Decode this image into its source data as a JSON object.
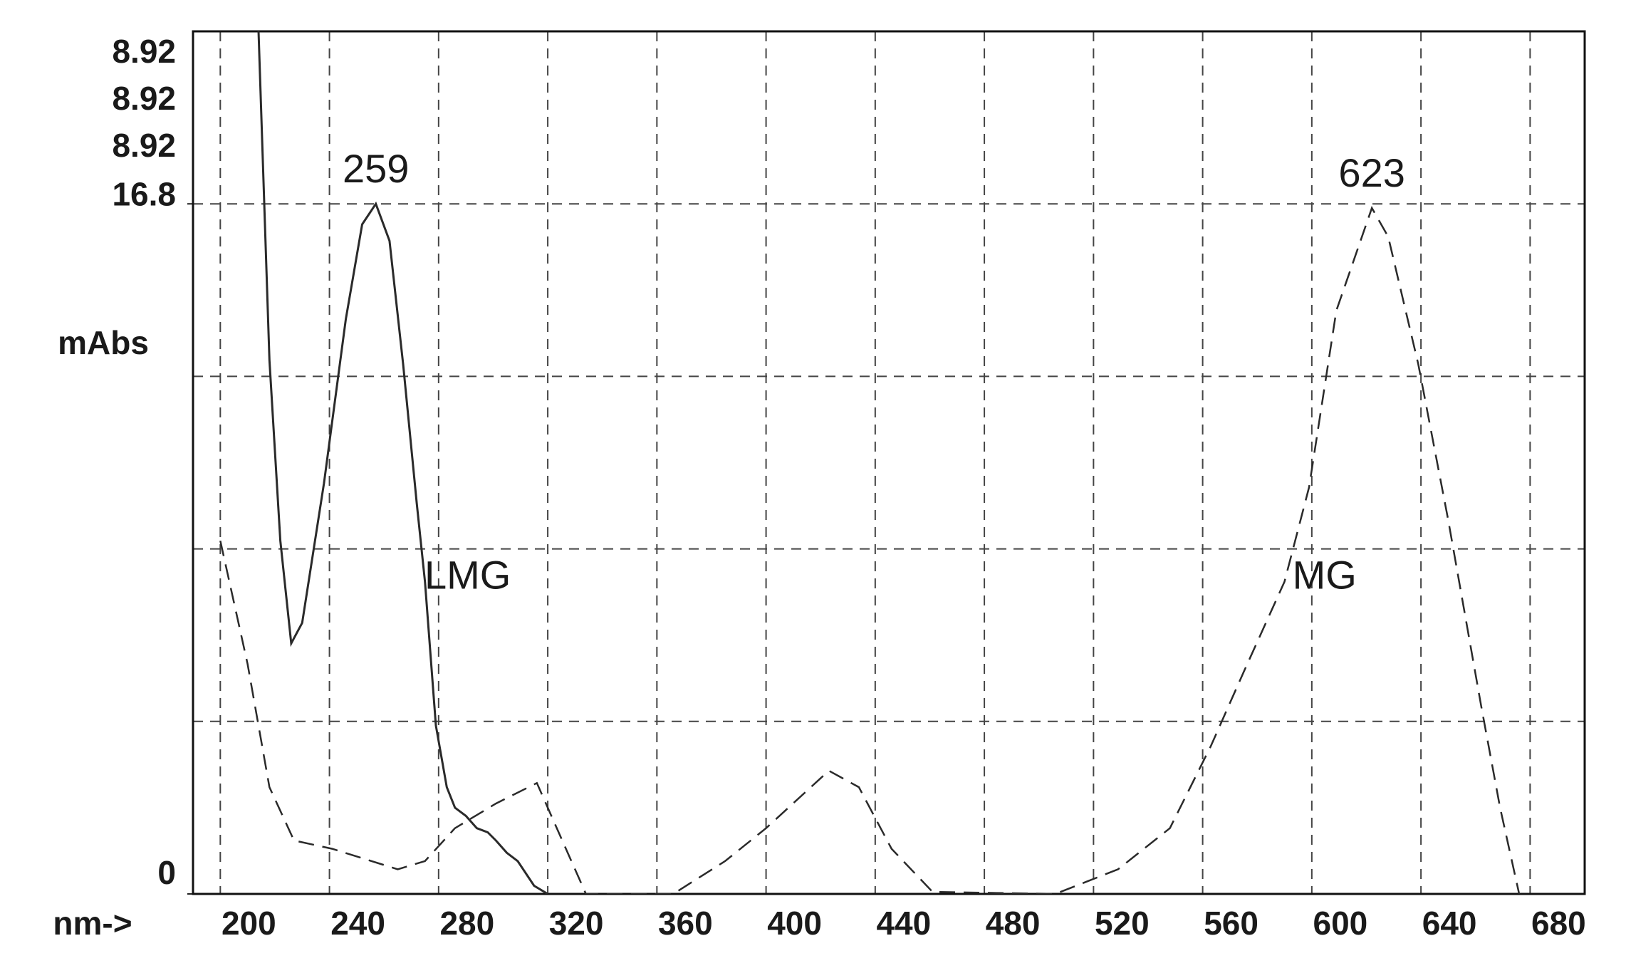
{
  "chart_data": {
    "type": "line",
    "scale_labels": [
      "8.92",
      "8.92",
      "8.92"
    ],
    "ylabel": "mAbs",
    "xlabel": "nm->",
    "xlim": [
      190,
      700
    ],
    "xticks": [
      200,
      240,
      280,
      320,
      360,
      400,
      440,
      480,
      520,
      560,
      600,
      640,
      680
    ],
    "ylim": [
      0,
      21
    ],
    "yticks": [
      0,
      16.8
    ],
    "y_gridlines": [
      0,
      4.2,
      8.4,
      12.6,
      16.8
    ],
    "grid": true,
    "annotations": [
      {
        "text": "259",
        "x": 257,
        "y": 16.8
      },
      {
        "text": "623",
        "x": 622,
        "y": 16.7
      },
      {
        "text": "LMG",
        "x": 275,
        "y": 7.6
      },
      {
        "text": "MG",
        "x": 589,
        "y": 7.6
      }
    ],
    "series": [
      {
        "name": "LMG",
        "color": "#2a2a2a",
        "dash": "solid",
        "x": [
          214,
          218,
          222,
          226,
          230,
          238,
          246,
          252,
          257,
          262,
          267,
          272,
          275,
          279,
          283,
          286,
          290,
          294,
          298,
          301,
          305,
          309,
          315,
          320
        ],
        "values": [
          21,
          13,
          8.6,
          6.1,
          6.6,
          10,
          14,
          16.3,
          16.8,
          15.9,
          12.9,
          9.5,
          7.6,
          4.1,
          2.6,
          2.1,
          1.9,
          1.6,
          1.5,
          1.3,
          1.0,
          0.8,
          0.2,
          0
        ]
      },
      {
        "name": "MG",
        "color": "#2a2a2a",
        "dash": "dashed",
        "x": [
          200,
          210,
          218,
          227,
          241,
          265,
          275,
          286,
          301,
          316,
          322,
          334,
          366,
          385,
          400,
          423,
          434,
          446,
          461,
          506,
          529,
          548,
          563,
          575,
          590,
          599,
          609,
          622,
          628,
          639,
          650,
          662,
          669,
          676
        ],
        "values": [
          8.6,
          5.6,
          2.6,
          1.3,
          1.1,
          0.6,
          0.8,
          1.6,
          2.2,
          2.7,
          1.8,
          0,
          0,
          0.8,
          1.6,
          3.0,
          2.6,
          1.1,
          0.05,
          0,
          0.6,
          1.6,
          3.6,
          5.4,
          7.6,
          9.9,
          14.2,
          16.7,
          16.0,
          12.9,
          9.1,
          4.6,
          2.1,
          0
        ]
      }
    ]
  }
}
